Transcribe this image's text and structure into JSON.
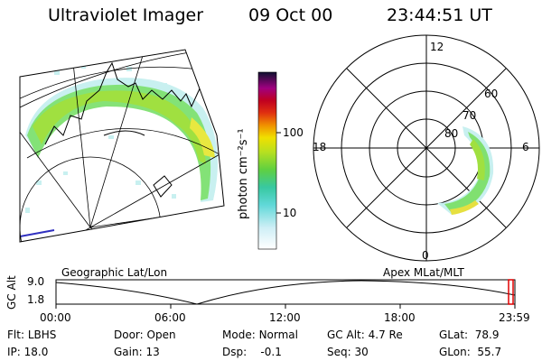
{
  "header": {
    "title": "Ultraviolet Imager",
    "date": "09 Oct 00",
    "time": "23:44:51 UT"
  },
  "colorbar": {
    "unit_label": "photon cm⁻²s⁻¹",
    "ticks": [
      "100",
      "10"
    ],
    "tick_values": [
      100,
      10
    ]
  },
  "polar_plot": {
    "label": "Apex MLat/MLT",
    "mlt_labels": {
      "top": "12",
      "left": "18",
      "right": "6",
      "bottom": "0"
    },
    "lat_labels": [
      "60",
      "70",
      "80"
    ],
    "lat_values": [
      60,
      70,
      80
    ]
  },
  "geo_plot": {
    "label": "Geographic Lat/Lon"
  },
  "timeline": {
    "axis_label": "GC Alt",
    "y_ticks": [
      "9.0",
      "1.8"
    ],
    "x_ticks": [
      "00:00",
      "06:00",
      "12:00",
      "18:00",
      "23:59"
    ]
  },
  "info": {
    "row1": [
      {
        "k": "Flt:",
        "v": "LBHS"
      },
      {
        "k": "Door:",
        "v": "Open"
      },
      {
        "k": "Mode:",
        "v": "Normal"
      },
      {
        "k": "GC Alt:",
        "v": "4.7 Re"
      },
      {
        "k": "GLat:",
        "v": "78.9"
      }
    ],
    "row2": [
      {
        "k": "IP:",
        "v": "18.0"
      },
      {
        "k": "Gain:",
        "v": "13"
      },
      {
        "k": "Dsp:",
        "v": "-0.1"
      },
      {
        "k": "Seq:",
        "v": "30"
      },
      {
        "k": "GLon:",
        "v": "55.7"
      }
    ]
  },
  "colors": {
    "low": "#b8f0f0",
    "mid": "#a0e060",
    "high": "#e6e040",
    "accent": "#e00000"
  }
}
